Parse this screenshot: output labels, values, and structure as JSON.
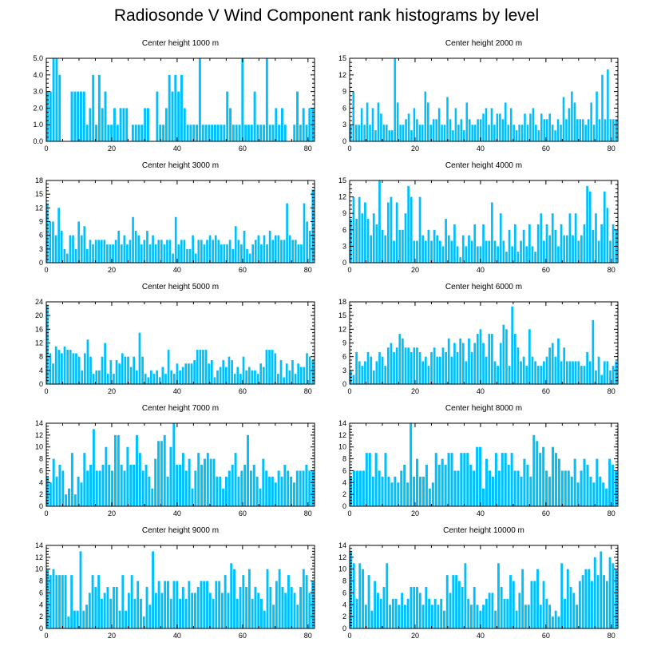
{
  "title": "Radiosonde V Wind Component rank histograms by level",
  "bar_color": "#00bfff",
  "chart_data": [
    {
      "type": "bar",
      "title": "Center height 1000 m",
      "xlim": [
        0,
        82
      ],
      "ylim": [
        0,
        5
      ],
      "xticks": [
        0,
        20,
        40,
        60,
        80
      ],
      "yticks": [
        0,
        1,
        2,
        3,
        4,
        5
      ],
      "ytick_labels": [
        "0.0",
        "1.0",
        "2.0",
        "3.0",
        "4.0",
        "5.0"
      ],
      "values": [
        3,
        3,
        5,
        5,
        4,
        0,
        0,
        0,
        3,
        3,
        3,
        3,
        3,
        1,
        2,
        4,
        1,
        4,
        2,
        3,
        1,
        1,
        2,
        1,
        2,
        2,
        2,
        0,
        1,
        1,
        1,
        1,
        2,
        2,
        0,
        0,
        3,
        1,
        1,
        2,
        4,
        3,
        4,
        3,
        4,
        2,
        1,
        1,
        1,
        1,
        5,
        1,
        1,
        1,
        1,
        1,
        1,
        1,
        1,
        3,
        2,
        1,
        1,
        1,
        5,
        1,
        1,
        1,
        3,
        1,
        1,
        1,
        5,
        1,
        1,
        2,
        1,
        2,
        1,
        0,
        0,
        1,
        3,
        1,
        2,
        1,
        2,
        2
      ]
    },
    {
      "type": "bar",
      "title": "Center height 2000 m",
      "xlim": [
        0,
        82
      ],
      "ylim": [
        0,
        15
      ],
      "xticks": [
        0,
        20,
        40,
        60,
        80
      ],
      "yticks": [
        0,
        3,
        6,
        9,
        12,
        15
      ],
      "ytick_labels": [
        "0",
        "3",
        "6",
        "9",
        "12",
        "15"
      ],
      "values": [
        3,
        9,
        3,
        3,
        6,
        3,
        7,
        3,
        6,
        2,
        7,
        5,
        3,
        3,
        2,
        2,
        15,
        7,
        3,
        3,
        4,
        5,
        2,
        6,
        4,
        3,
        3,
        9,
        7,
        3,
        4,
        4,
        6,
        3,
        3,
        8,
        4,
        2,
        6,
        3,
        4,
        2,
        7,
        4,
        3,
        3,
        4,
        4,
        5,
        6,
        3,
        6,
        3,
        5,
        5,
        4,
        7,
        3,
        6,
        3,
        2,
        3,
        3,
        5,
        3,
        5,
        6,
        3,
        2,
        5,
        4,
        4,
        5,
        3,
        2,
        4,
        3,
        8,
        4,
        6,
        9,
        7,
        4,
        4,
        4,
        3,
        4,
        7,
        3,
        9,
        4,
        12,
        4,
        13,
        4,
        4,
        4
      ]
    },
    {
      "type": "bar",
      "title": "Center height 3000 m",
      "xlim": [
        0,
        82
      ],
      "ylim": [
        0,
        18
      ],
      "xticks": [
        0,
        20,
        40,
        60,
        80
      ],
      "yticks": [
        0,
        3,
        6,
        9,
        12,
        15,
        18
      ],
      "ytick_labels": [
        "0",
        "3",
        "6",
        "9",
        "12",
        "15",
        "18"
      ],
      "values": [
        13,
        9,
        9,
        6,
        12,
        7,
        3,
        2,
        6,
        6,
        3,
        9,
        6,
        8,
        3,
        5,
        4,
        5,
        5,
        5,
        5,
        4,
        4,
        4,
        5,
        7,
        4,
        6,
        4,
        5,
        10,
        7,
        6,
        4,
        5,
        7,
        4,
        6,
        4,
        5,
        5,
        4,
        5,
        5,
        2,
        10,
        4,
        5,
        5,
        3,
        3,
        6,
        2,
        5,
        5,
        4,
        5,
        6,
        5,
        6,
        5,
        4,
        4,
        4,
        5,
        3,
        8,
        5,
        4,
        7,
        3,
        2,
        4,
        5,
        6,
        4,
        6,
        4,
        7,
        5,
        6,
        6,
        5,
        5,
        13,
        6,
        5,
        5,
        4,
        4,
        13,
        9,
        7,
        16
      ]
    },
    {
      "type": "bar",
      "title": "Center height 4000 m",
      "xlim": [
        0,
        82
      ],
      "ylim": [
        0,
        15
      ],
      "xticks": [
        0,
        20,
        40,
        60,
        80
      ],
      "yticks": [
        0,
        3,
        6,
        9,
        12,
        15
      ],
      "ytick_labels": [
        "0",
        "3",
        "6",
        "9",
        "12",
        "15"
      ],
      "values": [
        8,
        12,
        8,
        12,
        9,
        11,
        8,
        5,
        9,
        7,
        15,
        6,
        5,
        11,
        12,
        4,
        11,
        6,
        6,
        9,
        14,
        12,
        4,
        4,
        12,
        5,
        4,
        6,
        4,
        6,
        5,
        4,
        3,
        8,
        5,
        4,
        7,
        3,
        1,
        5,
        3,
        5,
        4,
        7,
        3,
        3,
        7,
        4,
        4,
        11,
        4,
        3,
        9,
        4,
        2,
        6,
        3,
        7,
        2,
        4,
        6,
        3,
        7,
        3,
        2,
        7,
        9,
        4,
        7,
        5,
        9,
        6,
        3,
        7,
        5,
        5,
        9,
        5,
        9,
        4,
        5,
        7,
        14,
        13,
        6,
        9,
        4,
        7,
        13,
        10,
        4,
        7,
        6
      ]
    },
    {
      "type": "bar",
      "title": "Center height 5000 m",
      "xlim": [
        0,
        82
      ],
      "ylim": [
        0,
        24
      ],
      "xticks": [
        0,
        20,
        40,
        60,
        80
      ],
      "yticks": [
        0,
        4,
        8,
        12,
        16,
        20,
        24
      ],
      "ytick_labels": [
        "0",
        "4",
        "8",
        "12",
        "16",
        "20",
        "24"
      ],
      "values": [
        23,
        9,
        6,
        11,
        10,
        9,
        11,
        10,
        10,
        9,
        9,
        8,
        4,
        9,
        13,
        8,
        3,
        4,
        4,
        8,
        12,
        3,
        7,
        3,
        7,
        6,
        9,
        8,
        8,
        5,
        8,
        4,
        15,
        8,
        3,
        2,
        4,
        3,
        4,
        2,
        5,
        3,
        10,
        4,
        3,
        6,
        4,
        5,
        6,
        6,
        6,
        7,
        10,
        10,
        10,
        10,
        6,
        7,
        2,
        4,
        5,
        7,
        5,
        8,
        7,
        3,
        5,
        3,
        8,
        4,
        5,
        4,
        4,
        3,
        6,
        5,
        10,
        10,
        10,
        9,
        3,
        7,
        2,
        6,
        4,
        7,
        3,
        6,
        5,
        5,
        9,
        8,
        7
      ]
    },
    {
      "type": "bar",
      "title": "Center height 6000 m",
      "xlim": [
        0,
        82
      ],
      "ylim": [
        0,
        18
      ],
      "xticks": [
        0,
        20,
        40,
        60,
        80
      ],
      "yticks": [
        0,
        3,
        6,
        9,
        12,
        15,
        18
      ],
      "ytick_labels": [
        "0",
        "3",
        "6",
        "9",
        "12",
        "15",
        "18"
      ],
      "values": [
        3,
        2,
        7,
        5,
        4,
        5,
        7,
        6,
        3,
        5,
        7,
        6,
        4,
        8,
        9,
        7,
        8,
        11,
        10,
        8,
        8,
        7,
        8,
        8,
        7,
        5,
        6,
        4,
        7,
        8,
        6,
        6,
        8,
        7,
        10,
        6,
        9,
        7,
        10,
        9,
        5,
        10,
        7,
        9,
        11,
        12,
        9,
        6,
        11,
        11,
        5,
        4,
        9,
        13,
        12,
        4,
        17,
        11,
        8,
        5,
        6,
        4,
        12,
        6,
        5,
        4,
        4,
        5,
        6,
        8,
        9,
        6,
        10,
        5,
        8,
        5,
        5,
        5,
        5,
        5,
        4,
        4,
        7,
        5,
        14,
        3,
        6,
        2,
        5,
        5,
        3,
        4,
        5
      ]
    },
    {
      "type": "bar",
      "title": "Center height 7000 m",
      "xlim": [
        0,
        82
      ],
      "ylim": [
        0,
        14
      ],
      "xticks": [
        0,
        20,
        40,
        60,
        80
      ],
      "yticks": [
        0,
        2,
        4,
        6,
        8,
        10,
        12,
        14
      ],
      "ytick_labels": [
        "0",
        "2",
        "4",
        "6",
        "8",
        "10",
        "12",
        "14"
      ],
      "values": [
        5,
        4,
        8,
        5,
        7,
        6,
        2,
        3,
        9,
        2,
        5,
        4,
        9,
        6,
        7,
        13,
        6,
        6,
        7,
        10,
        7,
        6,
        12,
        12,
        7,
        6,
        10,
        7,
        7,
        12,
        9,
        6,
        7,
        5,
        3,
        8,
        11,
        11,
        12,
        5,
        10,
        14,
        7,
        7,
        9,
        6,
        8,
        3,
        6,
        9,
        7,
        8,
        9,
        8,
        8,
        5,
        5,
        3,
        5,
        6,
        7,
        9,
        5,
        6,
        7,
        12,
        6,
        7,
        5,
        3,
        8,
        6,
        5,
        5,
        4,
        6,
        5,
        7,
        6,
        5,
        4,
        6,
        6,
        6,
        7,
        6,
        6
      ]
    },
    {
      "type": "bar",
      "title": "Center height 8000 m",
      "xlim": [
        0,
        82
      ],
      "ylim": [
        0,
        14
      ],
      "xticks": [
        0,
        20,
        40,
        60,
        80
      ],
      "yticks": [
        0,
        2,
        4,
        6,
        8,
        10,
        12,
        14
      ],
      "ytick_labels": [
        "0",
        "2",
        "4",
        "6",
        "8",
        "10",
        "12",
        "14"
      ],
      "values": [
        5,
        6,
        6,
        6,
        6,
        9,
        9,
        5,
        9,
        6,
        5,
        9,
        5,
        4,
        5,
        4,
        6,
        7,
        4,
        14,
        5,
        8,
        5,
        5,
        7,
        3,
        4,
        9,
        7,
        8,
        7,
        9,
        9,
        6,
        6,
        9,
        9,
        9,
        7,
        6,
        10,
        10,
        3,
        8,
        6,
        5,
        9,
        6,
        9,
        9,
        7,
        9,
        6,
        6,
        5,
        8,
        7,
        5,
        12,
        11,
        9,
        10,
        6,
        5,
        10,
        9,
        8,
        6,
        6,
        6,
        5,
        8,
        4,
        6,
        8,
        7,
        5,
        4,
        8,
        5,
        4,
        3,
        8,
        7,
        6
      ]
    },
    {
      "type": "bar",
      "title": "Center height 9000 m",
      "xlim": [
        0,
        82
      ],
      "ylim": [
        0,
        14
      ],
      "xticks": [
        0,
        20,
        40,
        60,
        80
      ],
      "yticks": [
        0,
        2,
        4,
        6,
        8,
        10,
        12,
        14
      ],
      "ytick_labels": [
        "0",
        "2",
        "4",
        "6",
        "8",
        "10",
        "12",
        "14"
      ],
      "values": [
        10,
        9,
        10,
        9,
        9,
        9,
        9,
        2,
        9,
        3,
        3,
        13,
        3,
        4,
        6,
        9,
        7,
        9,
        5,
        6,
        7,
        5,
        7,
        7,
        3,
        9,
        3,
        6,
        9,
        5,
        8,
        5,
        2,
        7,
        4,
        13,
        6,
        8,
        6,
        8,
        8,
        5,
        8,
        8,
        5,
        7,
        5,
        8,
        6,
        6,
        7,
        8,
        8,
        8,
        6,
        5,
        8,
        8,
        6,
        9,
        6,
        11,
        10,
        5,
        7,
        9,
        7,
        10,
        5,
        7,
        6,
        5,
        3,
        10,
        7,
        4,
        8,
        10,
        7,
        6,
        9,
        7,
        6,
        4,
        7,
        10,
        9,
        6,
        8
      ]
    },
    {
      "type": "bar",
      "title": "Center height 10000 m",
      "xlim": [
        0,
        82
      ],
      "ylim": [
        0,
        14
      ],
      "xticks": [
        0,
        20,
        40,
        60,
        80
      ],
      "yticks": [
        0,
        2,
        4,
        6,
        8,
        10,
        12,
        14
      ],
      "ytick_labels": [
        "0",
        "2",
        "4",
        "6",
        "8",
        "10",
        "12",
        "14"
      ],
      "values": [
        13,
        11,
        5,
        11,
        10,
        4,
        9,
        3,
        8,
        6,
        5,
        7,
        11,
        4,
        5,
        5,
        4,
        6,
        4,
        5,
        7,
        7,
        7,
        6,
        4,
        7,
        5,
        4,
        5,
        4,
        5,
        3,
        9,
        6,
        9,
        9,
        8,
        7,
        11,
        5,
        4,
        7,
        4,
        3,
        4,
        5,
        6,
        6,
        3,
        11,
        7,
        5,
        5,
        9,
        8,
        3,
        6,
        10,
        4,
        4,
        8,
        8,
        10,
        4,
        8,
        5,
        4,
        2,
        3,
        2,
        11,
        5,
        10,
        7,
        6,
        4,
        8,
        9,
        10,
        10,
        8,
        12,
        9,
        13,
        9,
        8,
        12,
        11,
        10
      ]
    }
  ]
}
